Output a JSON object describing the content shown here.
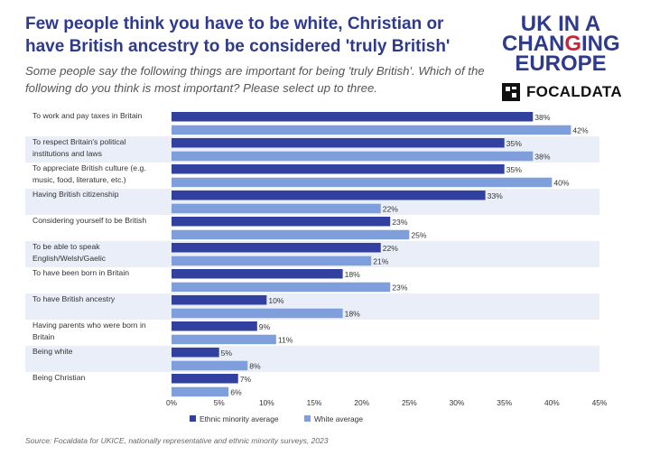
{
  "title": "Few people think you have to be white, Christian or have British ancestry to be considered 'truly British'",
  "subtitle": "Some people say the following things are important for being 'truly British'. Which of the following do you think is most important? Please select up to three.",
  "logos": {
    "ukicl_line1": "UK IN A",
    "ukicl_line2_a": "CHAN",
    "ukicl_line2_b": "G",
    "ukicl_line2_c": "ING",
    "ukicl_line3": "EUROPE",
    "focaldata": "FOCALDATA"
  },
  "source": "Source: Focaldata for UKICE, nationally representative and ethnic minority surveys, 2023",
  "colors": {
    "ethnic_minority": "#3240a0",
    "white": "#7f9fdc",
    "band": "#e9eef8",
    "title": "#2e3a8c",
    "accent_red": "#d0213a"
  },
  "chart_data": {
    "type": "bar",
    "orientation": "horizontal",
    "categories": [
      "To work and pay taxes in Britain",
      "To respect Britain's political institutions and laws",
      "To appreciate British culture (e.g. music, food, literature, etc.)",
      "Having British citizenship",
      "Considering yourself to be British",
      "To be able to speak English/Welsh/Gaelic",
      "To have been born in Britain",
      "To have British ancestry",
      "Having parents who were born in Britain",
      "Being white",
      "Being Christian"
    ],
    "category_lines": [
      [
        "To work and pay taxes in Britain"
      ],
      [
        "To respect Britain's political",
        "institutions and laws"
      ],
      [
        "To appreciate British culture (e.g.",
        "music, food, literature, etc.)"
      ],
      [
        "Having British citizenship"
      ],
      [
        "Considering yourself to be British"
      ],
      [
        "To be able to speak",
        "English/Welsh/Gaelic"
      ],
      [
        "To have been born in Britain"
      ],
      [
        "To have British ancestry"
      ],
      [
        "Having parents who were born in",
        "Britain"
      ],
      [
        "Being white"
      ],
      [
        "Being Christian"
      ]
    ],
    "series": [
      {
        "name": "Ethnic minority average",
        "values": [
          38,
          35,
          35,
          33,
          23,
          22,
          18,
          10,
          9,
          5,
          7
        ]
      },
      {
        "name": "White average",
        "values": [
          42,
          38,
          40,
          22,
          25,
          21,
          23,
          18,
          11,
          8,
          6
        ]
      }
    ],
    "value_suffix": "%",
    "xlim": [
      0,
      45
    ],
    "xticks": [
      0,
      5,
      10,
      15,
      20,
      25,
      30,
      35,
      40,
      45
    ],
    "xtick_labels": [
      "0%",
      "5%",
      "10%",
      "15%",
      "20%",
      "25%",
      "30%",
      "35%",
      "40%",
      "45%"
    ],
    "legend_position": "bottom",
    "grid": false
  }
}
